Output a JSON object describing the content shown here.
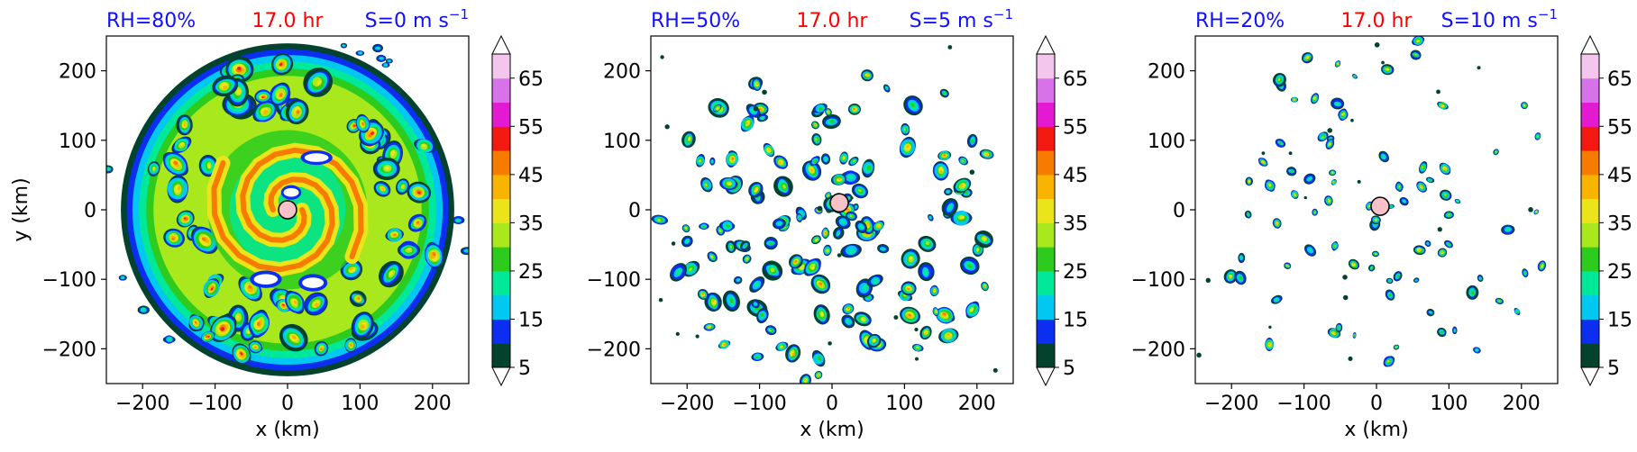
{
  "chart_data": [
    {
      "type": "heatmap",
      "title_left": "RH=80%",
      "title_center": "17.0 hr",
      "title_right": "S=0 m s",
      "title_right_sup": "−1",
      "xlabel": "x (km)",
      "ylabel": "y (km)",
      "xlim": [
        -250,
        250
      ],
      "ylim": [
        -250,
        250
      ],
      "xticks": [
        -200,
        -100,
        0,
        100,
        200
      ],
      "yticks": [
        -200,
        -100,
        0,
        100,
        200
      ],
      "xtick_labels": [
        "−200",
        "−100",
        "0",
        "100",
        "200"
      ],
      "ytick_labels": [
        "−200",
        "−100",
        "0",
        "100",
        "200"
      ],
      "center_marker": {
        "x": 0,
        "y": 0
      },
      "pattern": "dense_ring",
      "colorbar_ticks": [
        5,
        15,
        25,
        35,
        45,
        55,
        65
      ],
      "colorbar_ticks_labels": [
        "5",
        "15",
        "25",
        "35",
        "45",
        "55",
        "65"
      ]
    },
    {
      "type": "heatmap",
      "title_left": "RH=50%",
      "title_center": "17.0 hr",
      "title_right": "S=5 m s",
      "title_right_sup": "−1",
      "xlabel": "x (km)",
      "ylabel": "",
      "xlim": [
        -250,
        250
      ],
      "ylim": [
        -250,
        250
      ],
      "xticks": [
        -200,
        -100,
        0,
        100,
        200
      ],
      "yticks": [
        -200,
        -100,
        0,
        100,
        200
      ],
      "xtick_labels": [
        "−200",
        "−100",
        "0",
        "100",
        "200"
      ],
      "ytick_labels": [
        "−200",
        "−100",
        "0",
        "100",
        "200"
      ],
      "center_marker": {
        "x": 10,
        "y": 10
      },
      "pattern": "scattered_cells",
      "colorbar_ticks": [
        5,
        15,
        25,
        35,
        45,
        55,
        65
      ],
      "colorbar_ticks_labels": [
        "5",
        "15",
        "25",
        "35",
        "45",
        "55",
        "65"
      ]
    },
    {
      "type": "heatmap",
      "title_left": "RH=20%",
      "title_center": "17.0 hr",
      "title_right": "S=10 m s",
      "title_right_sup": "−1",
      "xlabel": "x (km)",
      "ylabel": "",
      "xlim": [
        -250,
        250
      ],
      "ylim": [
        -250,
        250
      ],
      "xticks": [
        -200,
        -100,
        0,
        100,
        200
      ],
      "yticks": [
        -200,
        -100,
        0,
        100,
        200
      ],
      "xtick_labels": [
        "−200",
        "−100",
        "0",
        "100",
        "200"
      ],
      "ytick_labels": [
        "−200",
        "−100",
        "0",
        "100",
        "200"
      ],
      "center_marker": {
        "x": 5,
        "y": 5
      },
      "pattern": "sparse_cells",
      "colorbar_ticks": [
        5,
        15,
        25,
        35,
        45,
        55,
        65
      ],
      "colorbar_ticks_labels": [
        "5",
        "15",
        "25",
        "35",
        "45",
        "55",
        "65"
      ]
    }
  ],
  "colors": {
    "title_blue": "#1010ff",
    "title_red": "#ff0000",
    "marker_fill": "#f6c2c8",
    "colorbar": [
      "#03432e",
      "#0b2ef0",
      "#00c8f0",
      "#00e89a",
      "#2ccb1e",
      "#a8e81c",
      "#ece41a",
      "#f8b400",
      "#f77b00",
      "#f41a12",
      "#e31ad2",
      "#d872e8",
      "#f4c6ee"
    ]
  }
}
